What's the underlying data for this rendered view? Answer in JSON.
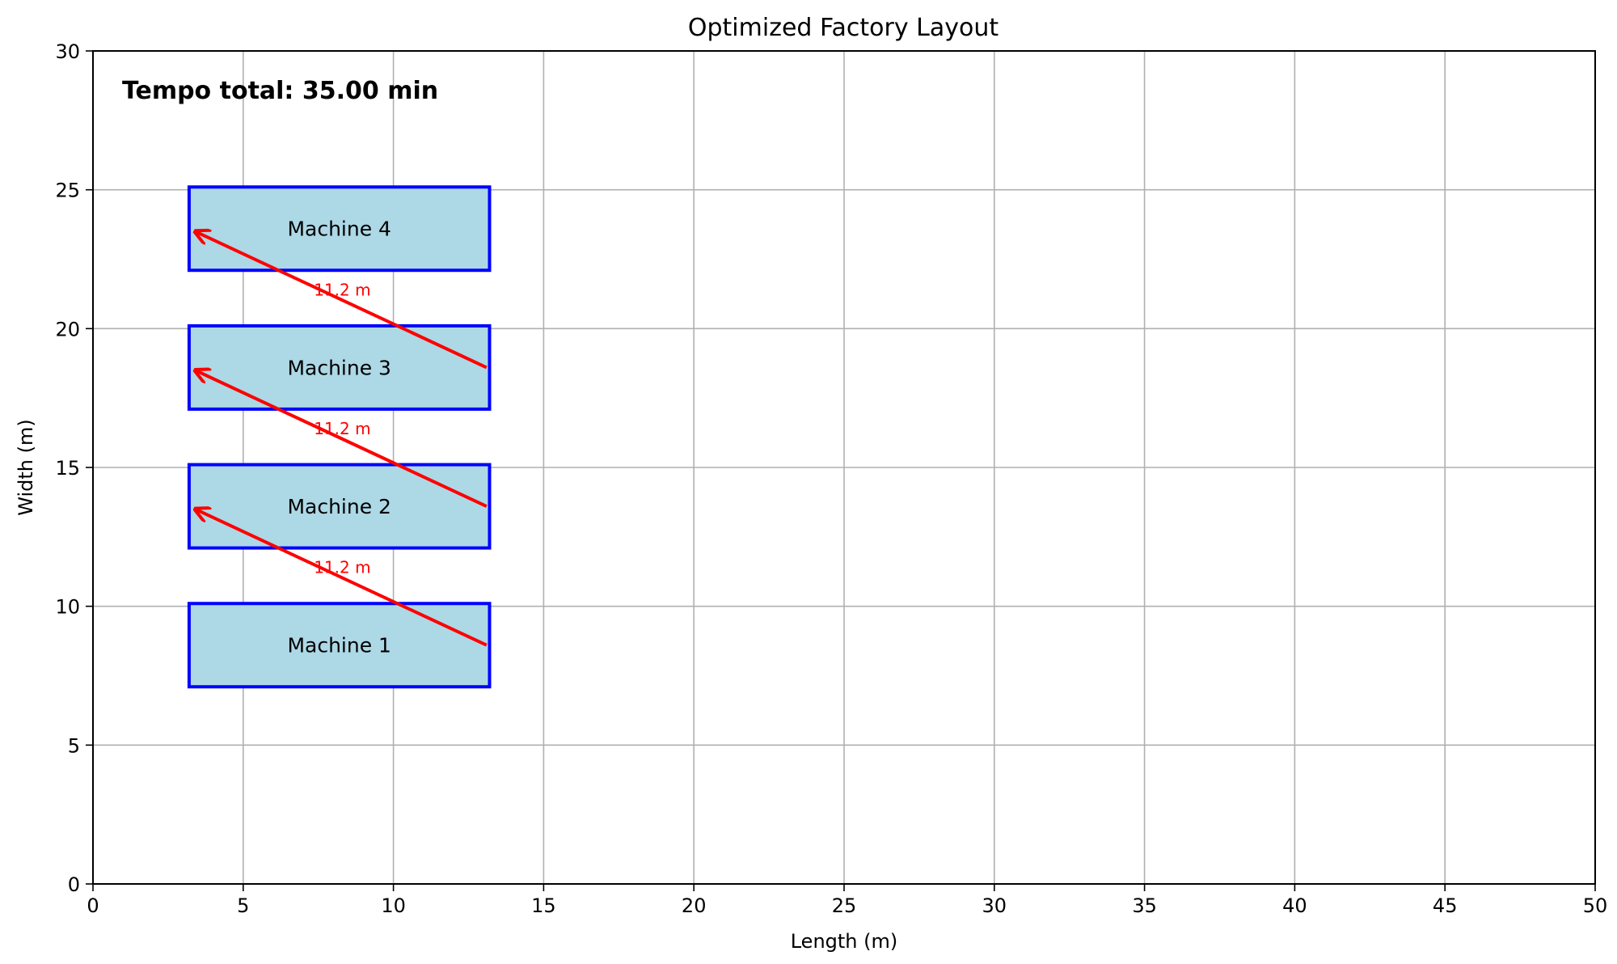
{
  "chart_data": {
    "type": "scatter",
    "title": "Optimized Factory Layout",
    "xlabel": "Length (m)",
    "ylabel": "Width (m)",
    "xlim": [
      0,
      50
    ],
    "ylim": [
      0,
      30
    ],
    "xticks": [
      0,
      5,
      10,
      15,
      20,
      25,
      30,
      35,
      40,
      45,
      50
    ],
    "yticks": [
      0,
      5,
      10,
      15,
      20,
      25,
      30
    ],
    "grid": true,
    "annotation": "Tempo total: 35.00 min",
    "machine_fill": "#add8e6",
    "machine_edge": "#0000ff",
    "arrow_color": "#ff0000",
    "machines": [
      {
        "name": "Machine 1",
        "x": 3.2,
        "y": 7.1,
        "length": 10.0,
        "width": 3.0
      },
      {
        "name": "Machine 2",
        "x": 3.2,
        "y": 12.1,
        "length": 10.0,
        "width": 3.0
      },
      {
        "name": "Machine 3",
        "x": 3.2,
        "y": 17.1,
        "length": 10.0,
        "width": 3.0
      },
      {
        "name": "Machine 4",
        "x": 3.2,
        "y": 22.1,
        "length": 10.0,
        "width": 3.0
      }
    ],
    "flows": [
      {
        "from": [
          13.1,
          8.6
        ],
        "to": [
          3.4,
          13.5
        ],
        "label": "11.2 m",
        "label_at": [
          8.3,
          11.4
        ]
      },
      {
        "from": [
          13.1,
          13.6
        ],
        "to": [
          3.4,
          18.5
        ],
        "label": "11.2 m",
        "label_at": [
          8.3,
          16.4
        ]
      },
      {
        "from": [
          13.1,
          18.6
        ],
        "to": [
          3.4,
          23.5
        ],
        "label": "11.2 m",
        "label_at": [
          8.3,
          21.4
        ]
      }
    ]
  }
}
